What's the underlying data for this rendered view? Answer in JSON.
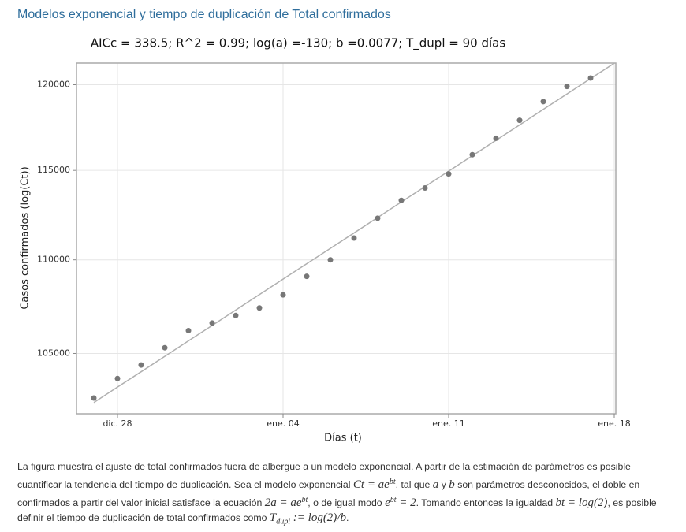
{
  "heading": "Modelos exponencial y tiempo de duplicación de Total confirmados",
  "chart_data": {
    "type": "scatter",
    "title": "AICc = 338.5; R^2 = 0.99; log(a) =-130; b =0.0077; T_dupl = 90 días",
    "x_label": "Días (t)",
    "y_label": "Casos confirmados (log(Ct))",
    "categories": [
      null,
      "dic. 28",
      null,
      null,
      null,
      null,
      null,
      null,
      "ene. 04",
      null,
      null,
      null,
      null,
      null,
      null,
      "ene. 11",
      null,
      null,
      null,
      null,
      null,
      null,
      "ene. 18"
    ],
    "series": [
      {
        "color": "#777777",
        "values": [
          102700,
          103700,
          104400,
          105300,
          106200,
          106600,
          107000,
          107400,
          108100,
          109100,
          110000,
          111200,
          112300,
          113300,
          114000,
          114800,
          115900,
          116850,
          117900,
          119000,
          119900,
          120400,
          null
        ]
      },
      {
        "color": "#b0b0b0",
        "values": [
          102470,
          103260,
          104050,
          104850,
          105660,
          106470,
          107290,
          108120,
          108950,
          109790,
          110630,
          111480,
          112340,
          113210,
          114080,
          114960,
          115840,
          116730,
          117630,
          118540,
          119450,
          120370,
          121290
        ]
      }
    ],
    "ylim": [
      101900,
      121300
    ],
    "yticks": [
      105000,
      110000,
      115000,
      120000
    ],
    "ylog": true,
    "grid": true
  },
  "paragraph": [
    "La figura muestra el ajuste de total confirmados fuera de albergue a un modelo exponencial. A partir de la estimación de parámetros es posible cuantificar la tendencia del tiempo de duplicación. Sea el modelo exponencial ",
    "Ct = ae",
    "bt",
    ", tal que ",
    "a",
    " y ",
    "b",
    " son parámetros desconocidos, el doble en confirmados a partir del valor inicial satisface la ecuación ",
    "2a = ae",
    "bt",
    ", o de igual modo ",
    "e",
    "bt",
    " = 2",
    ". Tomando entonces la igualdad ",
    "bt = log(2)",
    ", es posible definir el tiempo de duplicación de total confirmados como ",
    "T",
    "dupl",
    " := log(2)/b",
    "."
  ]
}
